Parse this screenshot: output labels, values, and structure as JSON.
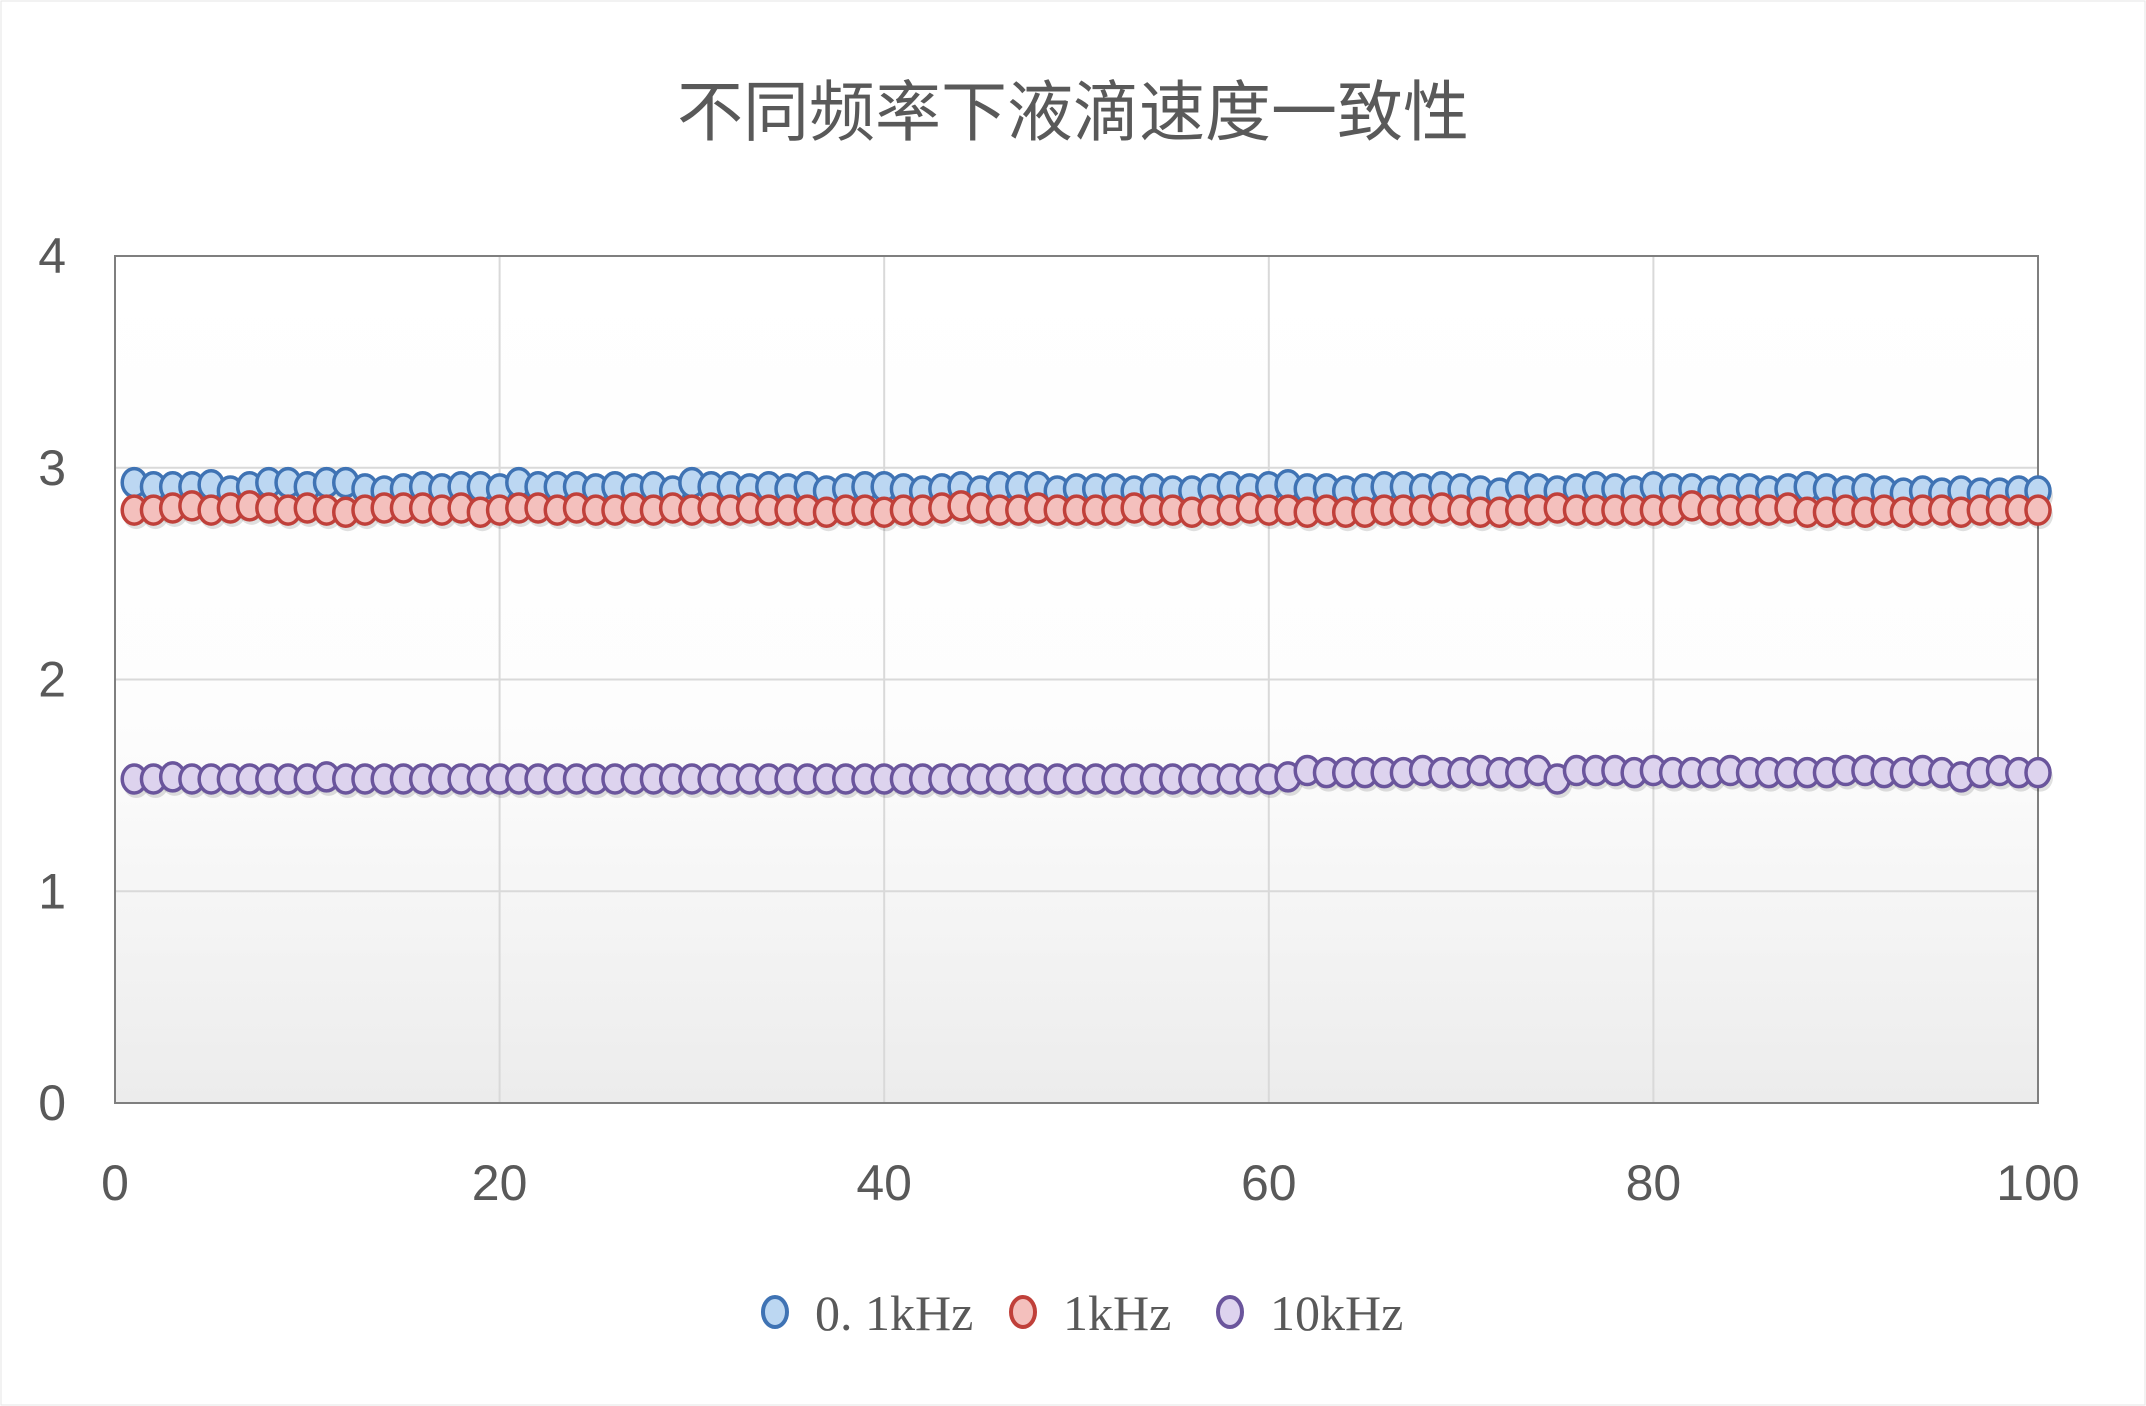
{
  "chart_data": {
    "type": "scatter",
    "title": "不同频率下液滴速度一致性",
    "xlabel": "",
    "ylabel": "",
    "xlim": [
      0,
      100
    ],
    "ylim": [
      0,
      4
    ],
    "xticks": [
      "0",
      "20",
      "40",
      "60",
      "80",
      "100"
    ],
    "yticks": [
      "0",
      "1",
      "2",
      "3",
      "4"
    ],
    "grid": true,
    "legend_position": "bottom",
    "series": [
      {
        "name": "0. 1kHz",
        "fill": "#bcd7f2",
        "stroke": "#3f73b4",
        "values": [
          2.93,
          2.91,
          2.91,
          2.91,
          2.92,
          2.89,
          2.91,
          2.93,
          2.93,
          2.91,
          2.93,
          2.93,
          2.9,
          2.89,
          2.9,
          2.91,
          2.9,
          2.91,
          2.91,
          2.9,
          2.93,
          2.91,
          2.91,
          2.91,
          2.9,
          2.91,
          2.9,
          2.91,
          2.89,
          2.93,
          2.91,
          2.91,
          2.9,
          2.91,
          2.9,
          2.91,
          2.89,
          2.9,
          2.91,
          2.91,
          2.9,
          2.89,
          2.9,
          2.91,
          2.89,
          2.91,
          2.91,
          2.91,
          2.89,
          2.9,
          2.9,
          2.9,
          2.89,
          2.9,
          2.89,
          2.89,
          2.9,
          2.91,
          2.9,
          2.91,
          2.92,
          2.9,
          2.9,
          2.89,
          2.9,
          2.91,
          2.91,
          2.9,
          2.91,
          2.9,
          2.89,
          2.88,
          2.91,
          2.9,
          2.89,
          2.9,
          2.91,
          2.9,
          2.89,
          2.91,
          2.9,
          2.9,
          2.89,
          2.9,
          2.9,
          2.89,
          2.9,
          2.91,
          2.9,
          2.89,
          2.9,
          2.89,
          2.88,
          2.89,
          2.88,
          2.89,
          2.88,
          2.88,
          2.89,
          2.89
        ]
      },
      {
        "name": "1kHz",
        "fill": "#f4c0bd",
        "stroke": "#c0403a",
        "values": [
          2.8,
          2.8,
          2.81,
          2.82,
          2.8,
          2.81,
          2.82,
          2.81,
          2.8,
          2.81,
          2.8,
          2.79,
          2.8,
          2.81,
          2.81,
          2.81,
          2.8,
          2.81,
          2.79,
          2.8,
          2.81,
          2.81,
          2.8,
          2.81,
          2.8,
          2.8,
          2.81,
          2.8,
          2.81,
          2.8,
          2.81,
          2.8,
          2.81,
          2.8,
          2.8,
          2.8,
          2.79,
          2.8,
          2.8,
          2.79,
          2.8,
          2.8,
          2.81,
          2.82,
          2.81,
          2.8,
          2.8,
          2.81,
          2.8,
          2.8,
          2.8,
          2.8,
          2.81,
          2.8,
          2.8,
          2.79,
          2.8,
          2.8,
          2.81,
          2.8,
          2.8,
          2.79,
          2.8,
          2.79,
          2.79,
          2.8,
          2.8,
          2.8,
          2.81,
          2.8,
          2.79,
          2.79,
          2.8,
          2.8,
          2.81,
          2.8,
          2.8,
          2.8,
          2.8,
          2.8,
          2.8,
          2.82,
          2.8,
          2.8,
          2.8,
          2.8,
          2.81,
          2.79,
          2.79,
          2.8,
          2.79,
          2.8,
          2.79,
          2.8,
          2.8,
          2.79,
          2.8,
          2.8,
          2.8,
          2.8
        ]
      },
      {
        "name": "10kHz",
        "fill": "#ddd3ee",
        "stroke": "#6a559c",
        "values": [
          1.53,
          1.53,
          1.54,
          1.53,
          1.53,
          1.53,
          1.53,
          1.53,
          1.53,
          1.53,
          1.54,
          1.53,
          1.53,
          1.53,
          1.53,
          1.53,
          1.53,
          1.53,
          1.53,
          1.53,
          1.53,
          1.53,
          1.53,
          1.53,
          1.53,
          1.53,
          1.53,
          1.53,
          1.53,
          1.53,
          1.53,
          1.53,
          1.53,
          1.53,
          1.53,
          1.53,
          1.53,
          1.53,
          1.53,
          1.53,
          1.53,
          1.53,
          1.53,
          1.53,
          1.53,
          1.53,
          1.53,
          1.53,
          1.53,
          1.53,
          1.53,
          1.53,
          1.53,
          1.53,
          1.53,
          1.53,
          1.53,
          1.53,
          1.53,
          1.53,
          1.54,
          1.57,
          1.56,
          1.56,
          1.56,
          1.56,
          1.56,
          1.57,
          1.56,
          1.56,
          1.57,
          1.56,
          1.56,
          1.57,
          1.53,
          1.57,
          1.57,
          1.57,
          1.56,
          1.57,
          1.56,
          1.56,
          1.56,
          1.57,
          1.56,
          1.56,
          1.56,
          1.56,
          1.56,
          1.57,
          1.57,
          1.56,
          1.56,
          1.57,
          1.56,
          1.54,
          1.56,
          1.57,
          1.56,
          1.56
        ]
      }
    ]
  }
}
